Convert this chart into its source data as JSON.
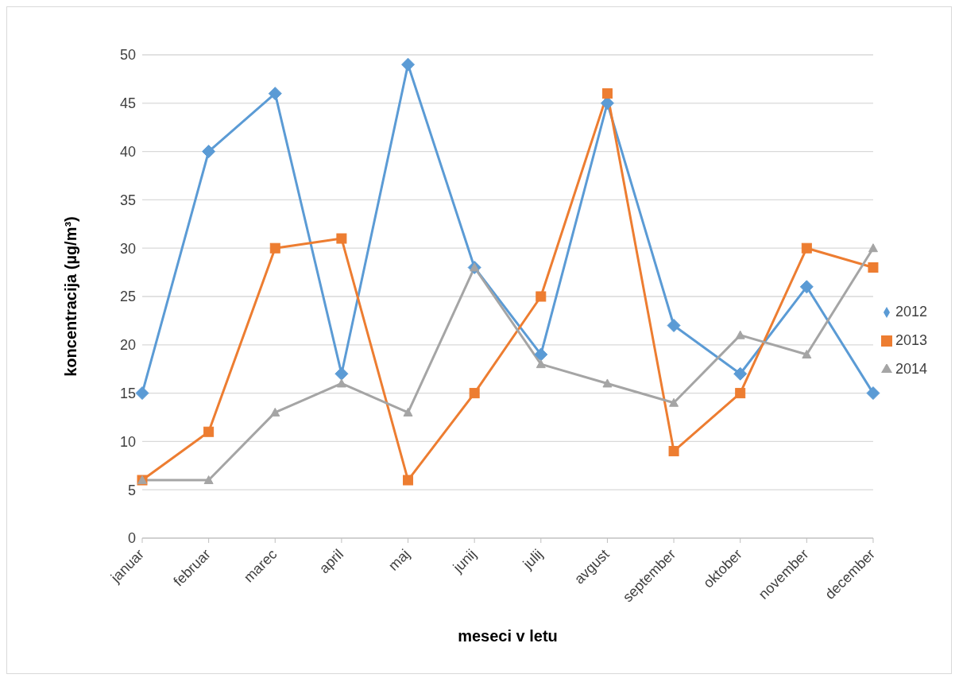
{
  "chart_data": {
    "type": "line",
    "xlabel": "meseci v letu",
    "ylabel": "koncentracija (µg/m³)",
    "categories": [
      "januar",
      "februar",
      "marec",
      "april",
      "maj",
      "junij",
      "julij",
      "avgust",
      "september",
      "oktober",
      "november",
      "december"
    ],
    "series": [
      {
        "name": "2012",
        "color": "#5b9bd5",
        "marker": "diamond",
        "values": [
          15,
          40,
          46,
          17,
          49,
          28,
          19,
          45,
          22,
          17,
          26,
          15
        ]
      },
      {
        "name": "2013",
        "color": "#ed7d31",
        "marker": "square",
        "values": [
          6,
          11,
          30,
          31,
          6,
          15,
          25,
          46,
          9,
          15,
          30,
          28
        ]
      },
      {
        "name": "2014",
        "color": "#a5a5a5",
        "marker": "triangle",
        "values": [
          6,
          6,
          13,
          16,
          13,
          28,
          18,
          16,
          14,
          21,
          19,
          30
        ]
      }
    ],
    "ylim": [
      0,
      50
    ],
    "yticks": [
      0,
      5,
      10,
      15,
      20,
      25,
      30,
      35,
      40,
      45,
      50
    ],
    "grid": "y",
    "legend": "right",
    "line_style": "solid"
  }
}
